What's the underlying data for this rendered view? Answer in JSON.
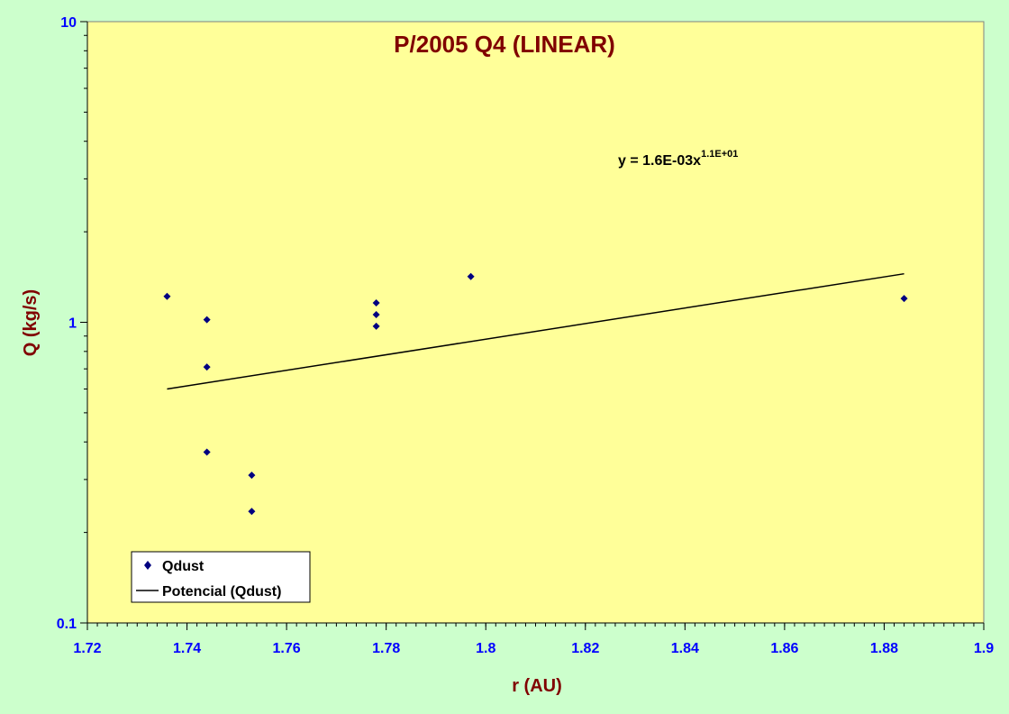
{
  "chart_data": {
    "type": "scatter",
    "title": "P/2005 Q4 (LINEAR)",
    "xlabel": "r (AU)",
    "ylabel": "Q (kg/s)",
    "xlim": [
      1.72,
      1.9
    ],
    "ylim": [
      0.1,
      10
    ],
    "yscale": "log",
    "xticks": [
      "1.72",
      "1.74",
      "1.76",
      "1.78",
      "1.8",
      "1.82",
      "1.84",
      "1.86",
      "1.88",
      "1.9"
    ],
    "yticks": [
      "0.1",
      "1",
      "10"
    ],
    "grid": false,
    "legend_position": "bottom-left",
    "series": [
      {
        "name": "Qdust",
        "kind": "points",
        "marker": "diamond",
        "color": "#000080",
        "points": [
          {
            "x": 1.736,
            "y": 1.22
          },
          {
            "x": 1.744,
            "y": 1.02
          },
          {
            "x": 1.744,
            "y": 0.71
          },
          {
            "x": 1.744,
            "y": 0.37
          },
          {
            "x": 1.753,
            "y": 0.31
          },
          {
            "x": 1.753,
            "y": 0.235
          },
          {
            "x": 1.778,
            "y": 1.16
          },
          {
            "x": 1.778,
            "y": 1.06
          },
          {
            "x": 1.778,
            "y": 0.97
          },
          {
            "x": 1.797,
            "y": 1.42
          },
          {
            "x": 1.884,
            "y": 1.2
          }
        ]
      },
      {
        "name": "Potencial (Qdust)",
        "kind": "trendline",
        "color": "#000000",
        "points": [
          {
            "x": 1.736,
            "y": 0.6
          },
          {
            "x": 1.884,
            "y": 1.45
          }
        ]
      }
    ],
    "annotation": {
      "base": "y = 1.6E-03x",
      "exponent": "1.1E+01"
    },
    "colors": {
      "page_background": "#ccffcc",
      "plot_background": "#ffff99",
      "title": "#800000",
      "axis_title": "#800000",
      "tick_label": "#0000ff"
    }
  }
}
